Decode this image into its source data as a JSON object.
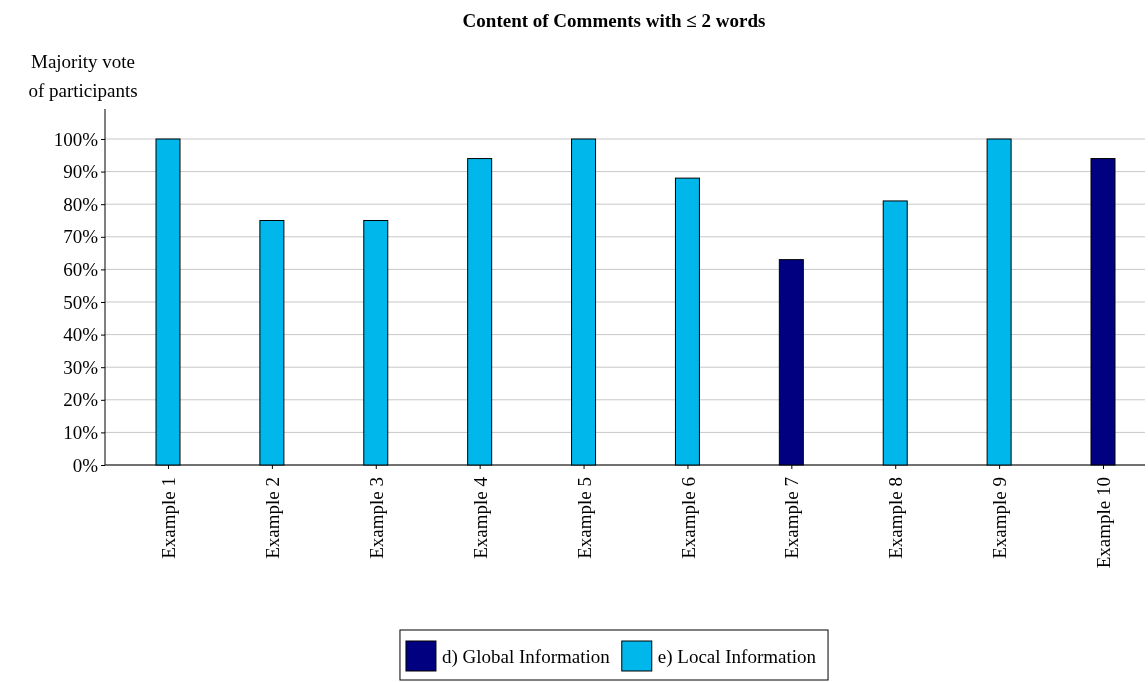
{
  "chart_data": {
    "type": "bar",
    "title": "Content of Comments with ≤ 2 words",
    "ylabel": "Majority vote\nof participants",
    "categories": [
      "Example 1",
      "Example 2",
      "Example 3",
      "Example 4",
      "Example 5",
      "Example 6",
      "Example 7",
      "Example 8",
      "Example 9",
      "Example 10"
    ],
    "series": [
      {
        "name": "d) Global Information",
        "color": "#000080",
        "values": [
          null,
          null,
          null,
          null,
          null,
          null,
          63,
          null,
          null,
          94
        ]
      },
      {
        "name": "e) Local Information",
        "color": "#00b7eb",
        "values": [
          100,
          75,
          75,
          94,
          100,
          88,
          null,
          81,
          100,
          null
        ]
      }
    ],
    "ylim": [
      0,
      100
    ],
    "yticks": [
      {
        "value": 0,
        "label": "0%"
      },
      {
        "value": 10,
        "label": "10%"
      },
      {
        "value": 20,
        "label": "20%"
      },
      {
        "value": 30,
        "label": "30%"
      },
      {
        "value": 40,
        "label": "40%"
      },
      {
        "value": 50,
        "label": "50%"
      },
      {
        "value": 60,
        "label": "60%"
      },
      {
        "value": 70,
        "label": "70%"
      },
      {
        "value": 80,
        "label": "80%"
      },
      {
        "value": 90,
        "label": "90%"
      },
      {
        "value": 100,
        "label": "100%"
      }
    ],
    "grid": "y",
    "legend": "bottom"
  }
}
